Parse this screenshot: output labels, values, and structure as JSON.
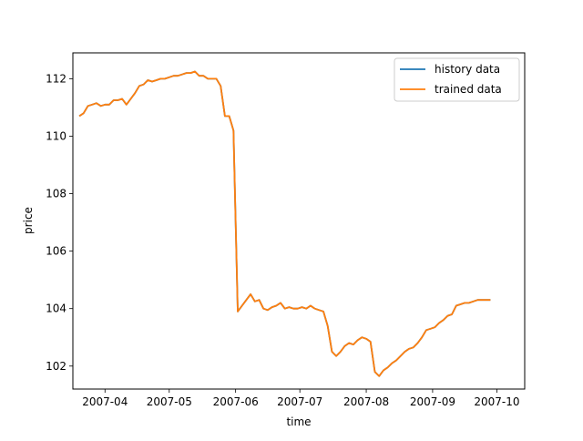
{
  "chart_data": {
    "type": "line",
    "xlabel": "time",
    "ylabel": "price",
    "x_ticks": [
      "2007-04",
      "2007-05",
      "2007-06",
      "2007-07",
      "2007-08",
      "2007-09",
      "2007-10"
    ],
    "x_tick_dates": [
      "2007-04-01",
      "2007-05-01",
      "2007-06-01",
      "2007-07-01",
      "2007-08-01",
      "2007-09-01",
      "2007-10-01"
    ],
    "xlim": [
      "2007-03-17",
      "2007-10-14"
    ],
    "y_ticks": [
      "102",
      "104",
      "106",
      "108",
      "110",
      "112"
    ],
    "ylim": [
      101.2,
      112.9
    ],
    "grid": false,
    "legend_position": "top-right",
    "x": [
      "2007-03-20",
      "2007-03-22",
      "2007-03-24",
      "2007-03-26",
      "2007-03-28",
      "2007-03-30",
      "2007-04-01",
      "2007-04-03",
      "2007-04-05",
      "2007-04-07",
      "2007-04-09",
      "2007-04-11",
      "2007-04-13",
      "2007-04-15",
      "2007-04-17",
      "2007-04-19",
      "2007-04-21",
      "2007-04-23",
      "2007-04-25",
      "2007-04-27",
      "2007-04-29",
      "2007-05-01",
      "2007-05-03",
      "2007-05-05",
      "2007-05-07",
      "2007-05-09",
      "2007-05-11",
      "2007-05-13",
      "2007-05-15",
      "2007-05-17",
      "2007-05-19",
      "2007-05-21",
      "2007-05-23",
      "2007-05-25",
      "2007-05-27",
      "2007-05-29",
      "2007-05-31",
      "2007-06-02",
      "2007-06-04",
      "2007-06-06",
      "2007-06-08",
      "2007-06-10",
      "2007-06-12",
      "2007-06-14",
      "2007-06-16",
      "2007-06-18",
      "2007-06-20",
      "2007-06-22",
      "2007-06-24",
      "2007-06-26",
      "2007-06-28",
      "2007-06-30",
      "2007-07-02",
      "2007-07-04",
      "2007-07-06",
      "2007-07-08",
      "2007-07-10",
      "2007-07-12",
      "2007-07-14",
      "2007-07-16",
      "2007-07-18",
      "2007-07-20",
      "2007-07-22",
      "2007-07-24",
      "2007-07-26",
      "2007-07-28",
      "2007-07-30",
      "2007-08-01",
      "2007-08-03",
      "2007-08-05",
      "2007-08-07",
      "2007-08-09",
      "2007-08-11",
      "2007-08-13",
      "2007-08-15",
      "2007-08-17",
      "2007-08-19",
      "2007-08-21",
      "2007-08-23",
      "2007-08-25",
      "2007-08-27",
      "2007-08-29",
      "2007-08-31",
      "2007-09-02",
      "2007-09-04",
      "2007-09-06",
      "2007-09-08",
      "2007-09-10",
      "2007-09-12",
      "2007-09-14",
      "2007-09-16",
      "2007-09-18",
      "2007-09-20",
      "2007-09-22",
      "2007-09-24",
      "2007-09-26",
      "2007-09-28"
    ],
    "series": [
      {
        "name": "history data",
        "color": "#1f77b4",
        "values": [
          110.7,
          110.8,
          111.05,
          111.1,
          111.15,
          111.05,
          111.1,
          111.1,
          111.25,
          111.25,
          111.3,
          111.1,
          111.3,
          111.5,
          111.75,
          111.8,
          111.95,
          111.9,
          111.95,
          112.0,
          112.0,
          112.05,
          112.1,
          112.1,
          112.15,
          112.2,
          112.2,
          112.25,
          112.1,
          112.1,
          112.0,
          112.0,
          112.0,
          111.75,
          110.7,
          110.7,
          110.2,
          103.9,
          104.1,
          104.3,
          104.5,
          104.25,
          104.3,
          104.0,
          103.95,
          104.05,
          104.1,
          104.2,
          104.0,
          104.05,
          104.0,
          104.0,
          104.05,
          104.0,
          104.1,
          104.0,
          103.95,
          103.9,
          103.4,
          102.5,
          102.35,
          102.5,
          102.7,
          102.8,
          102.75,
          102.9,
          103.0,
          102.95,
          102.85,
          101.8,
          101.65,
          101.85,
          101.95,
          102.1,
          102.2,
          102.35,
          102.5,
          102.6,
          102.65,
          102.8,
          103.0,
          103.25,
          103.3,
          103.35,
          103.5,
          103.6,
          103.75,
          103.8,
          104.1,
          104.15,
          104.2,
          104.2,
          104.25,
          104.3,
          104.3,
          104.3,
          104.3
        ]
      },
      {
        "name": "trained data",
        "color": "#ff7f0e",
        "values": [
          110.7,
          110.8,
          111.05,
          111.1,
          111.15,
          111.05,
          111.1,
          111.1,
          111.25,
          111.25,
          111.3,
          111.1,
          111.3,
          111.5,
          111.75,
          111.8,
          111.95,
          111.9,
          111.95,
          112.0,
          112.0,
          112.05,
          112.1,
          112.1,
          112.15,
          112.2,
          112.2,
          112.25,
          112.1,
          112.1,
          112.0,
          112.0,
          112.0,
          111.75,
          110.7,
          110.7,
          110.2,
          103.9,
          104.1,
          104.3,
          104.5,
          104.25,
          104.3,
          104.0,
          103.95,
          104.05,
          104.1,
          104.2,
          104.0,
          104.05,
          104.0,
          104.0,
          104.05,
          104.0,
          104.1,
          104.0,
          103.95,
          103.9,
          103.4,
          102.5,
          102.35,
          102.5,
          102.7,
          102.8,
          102.75,
          102.9,
          103.0,
          102.95,
          102.85,
          101.8,
          101.65,
          101.85,
          101.95,
          102.1,
          102.2,
          102.35,
          102.5,
          102.6,
          102.65,
          102.8,
          103.0,
          103.25,
          103.3,
          103.35,
          103.5,
          103.6,
          103.75,
          103.8,
          104.1,
          104.15,
          104.2,
          104.2,
          104.25,
          104.3,
          104.3,
          104.3,
          104.3
        ]
      }
    ]
  }
}
